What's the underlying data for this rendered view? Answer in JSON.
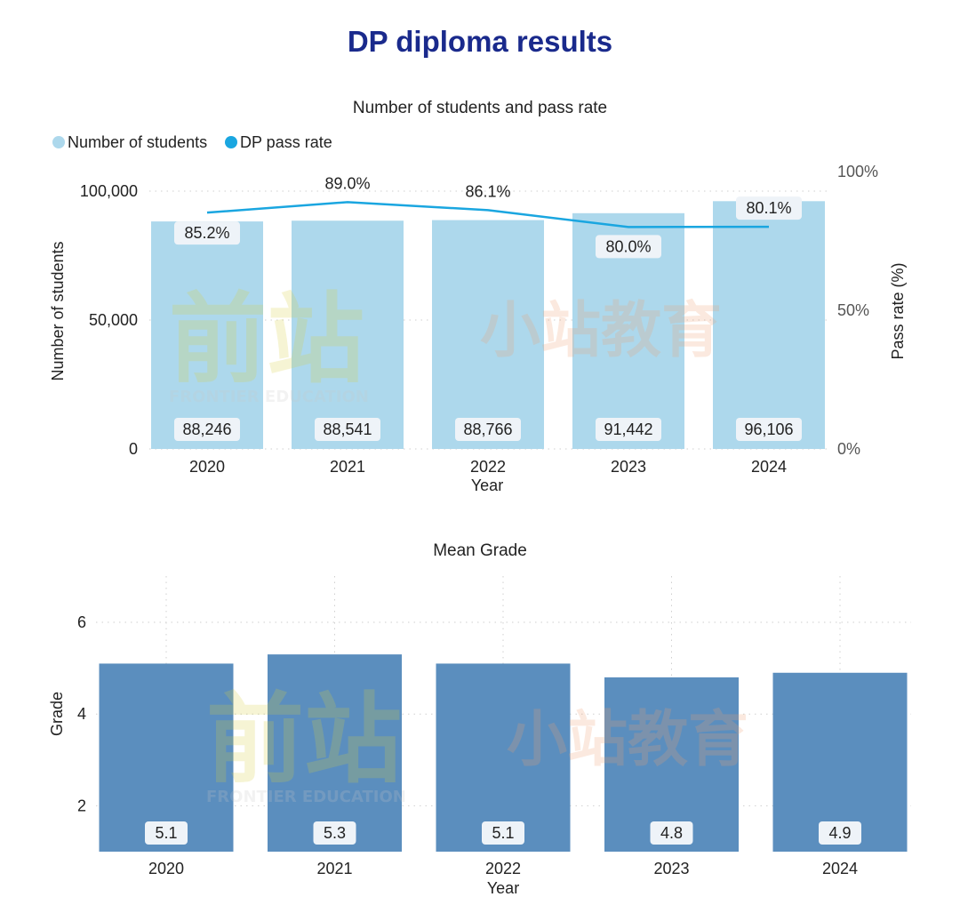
{
  "page": {
    "title": "DP diploma results",
    "watermark": {
      "brand_cn": "前站",
      "brand_en": "FRONTIER EDUCATION",
      "brand2_cn": "小站教育"
    }
  },
  "colors": {
    "title": "#1a2a8c",
    "students_bar": "#add8ec",
    "pass_rate_line": "#1aa6e0",
    "grade_bar": "#5b8ebe",
    "label_bg": "#eef3f8"
  },
  "chart_data": [
    {
      "type": "bar",
      "title": "Number of students and pass rate",
      "xlabel": "Year",
      "ylabel": "Number of students",
      "y2label": "Pass rate (%)",
      "categories": [
        "2020",
        "2021",
        "2022",
        "2023",
        "2024"
      ],
      "ylim": [
        0,
        100000
      ],
      "yticks": [
        "0",
        "50,000",
        "100,000"
      ],
      "y2lim": [
        0,
        100
      ],
      "y2ticks": [
        "0%",
        "50%",
        "100%"
      ],
      "legend": "top-left",
      "grid": true,
      "series": [
        {
          "name": "Number of students",
          "type": "bar",
          "axis": "left",
          "values": [
            88246,
            88541,
            88766,
            91442,
            96106
          ],
          "labels": [
            "88,246",
            "88,541",
            "88,766",
            "91,442",
            "96,106"
          ]
        },
        {
          "name": "DP pass rate",
          "type": "line",
          "axis": "right",
          "values": [
            85.2,
            89.0,
            86.1,
            80.0,
            80.1
          ],
          "labels": [
            "85.2%",
            "89.0%",
            "86.1%",
            "80.0%",
            "80.1%"
          ]
        }
      ]
    },
    {
      "type": "bar",
      "title": "Mean Grade",
      "xlabel": "Year",
      "ylabel": "Grade",
      "categories": [
        "2020",
        "2021",
        "2022",
        "2023",
        "2024"
      ],
      "ylim": [
        1,
        7
      ],
      "yticks": [
        "2",
        "4",
        "6"
      ],
      "grid": true,
      "series": [
        {
          "name": "Mean Grade",
          "values": [
            5.1,
            5.3,
            5.1,
            4.8,
            4.9
          ],
          "labels": [
            "5.1",
            "5.3",
            "5.1",
            "4.8",
            "4.9"
          ]
        }
      ]
    }
  ]
}
